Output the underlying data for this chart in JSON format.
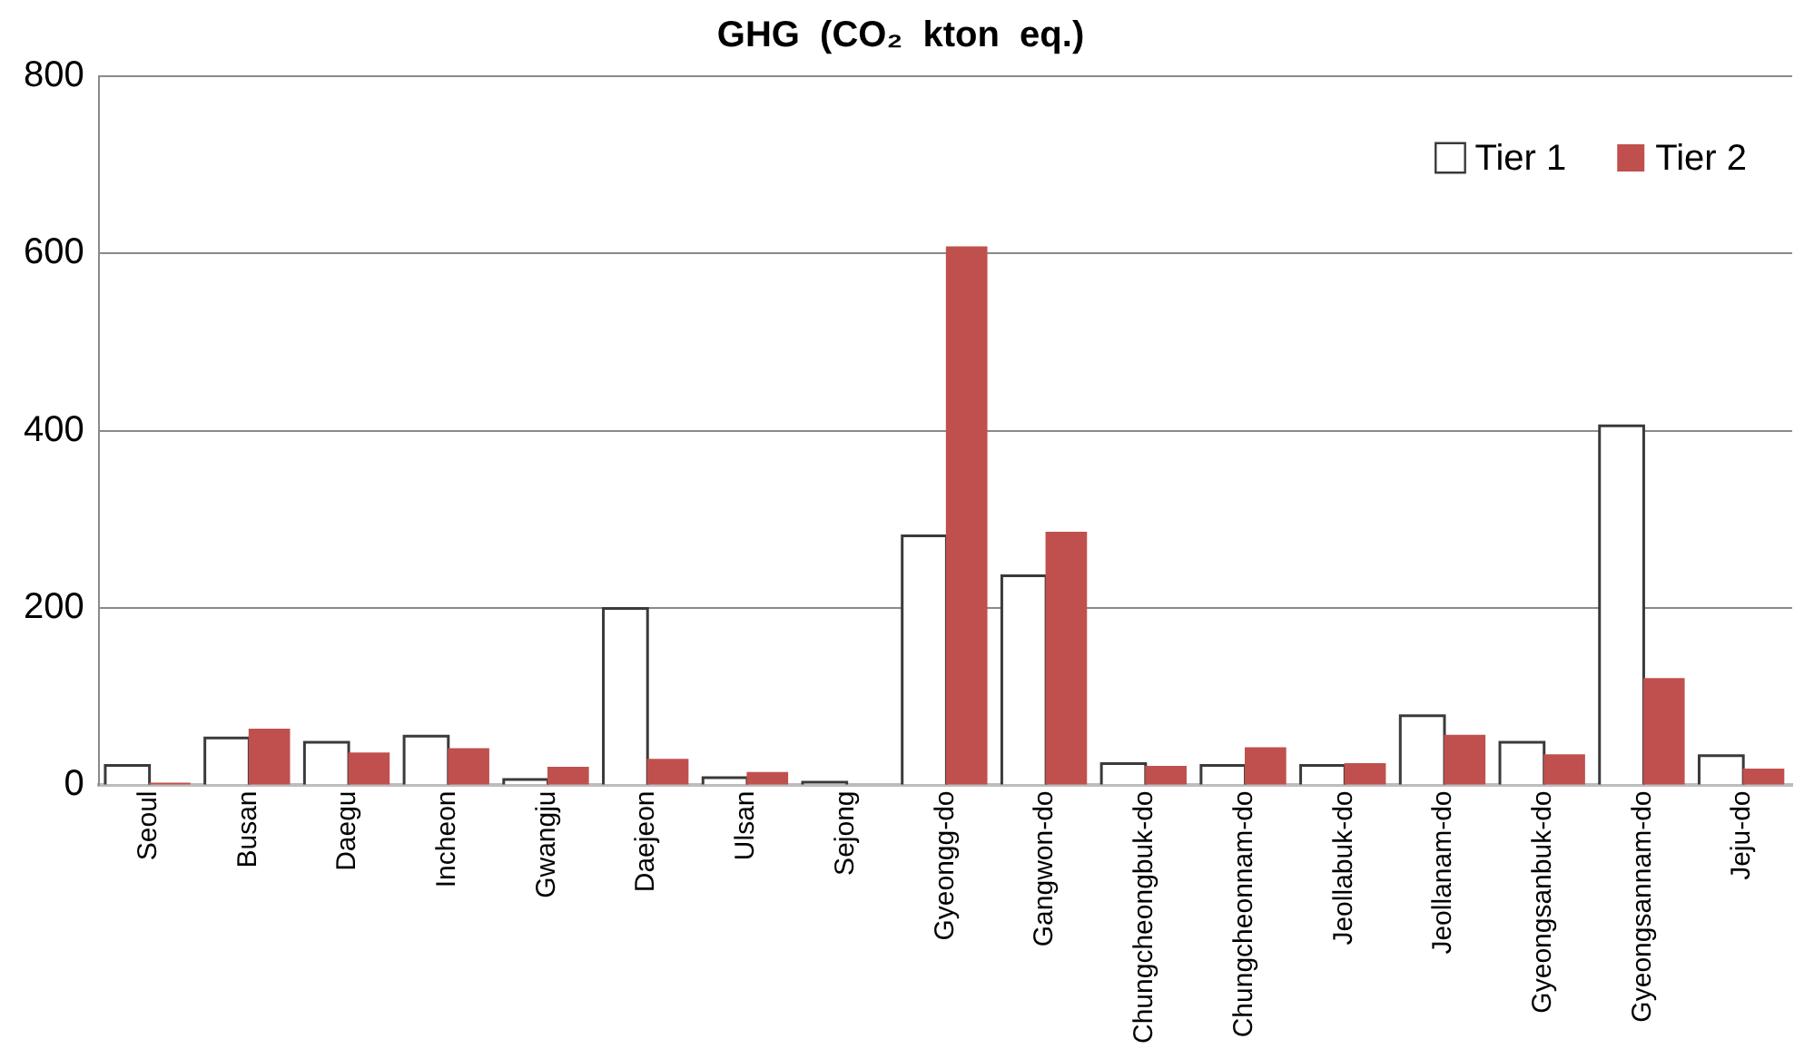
{
  "chart_data": {
    "type": "bar",
    "title": "GHG  (CO₂  kton  eq.)",
    "categories": [
      "Seoul",
      "Busan",
      "Daegu",
      "Incheon",
      "Gwangju",
      "Daejeon",
      "Ulsan",
      "Sejong",
      "Gyeongg-do",
      "Gangwon-do",
      "Chungcheongbuk-do",
      "Chungcheonnam-do",
      "Jeollabuk-do",
      "Jeollanam-do",
      "Gyeongsanbuk-do",
      "Gyeongsannam-do",
      "Jeju-do"
    ],
    "series": [
      {
        "name": "Tier 1",
        "color": "#ffffff",
        "values": [
          21,
          52,
          47,
          54,
          5,
          198,
          7,
          2,
          280,
          235,
          23,
          21,
          21,
          77,
          47,
          404,
          32
        ]
      },
      {
        "name": "Tier 2",
        "color": "#c0504d",
        "values": [
          3,
          64,
          37,
          42,
          21,
          30,
          15,
          null,
          608,
          286,
          22,
          43,
          25,
          57,
          35,
          121,
          19
        ]
      }
    ],
    "ylim": [
      0,
      800
    ],
    "yticks": [
      0,
      200,
      400,
      600,
      800
    ],
    "grid": "y",
    "legend": "top right"
  }
}
